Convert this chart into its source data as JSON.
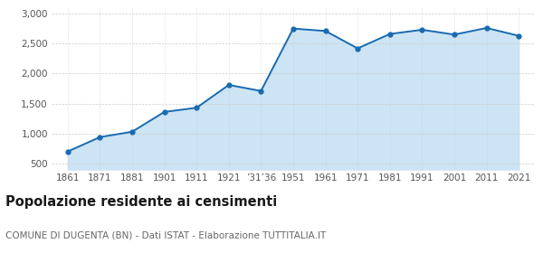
{
  "x_labels": [
    "1861",
    "1871",
    "1881",
    "1901",
    "1911",
    "1921",
    "’31’36",
    "1951",
    "1961",
    "1971",
    "1981",
    "1991",
    "2001",
    "2011",
    "2021"
  ],
  "population": [
    700,
    940,
    1030,
    1360,
    1430,
    1810,
    1710,
    2750,
    2710,
    2420,
    2660,
    2730,
    2650,
    2760,
    2630
  ],
  "line_color": "#1a6ab0",
  "fill_color": "#cce4f4",
  "marker_size": 3.5,
  "ylim": [
    400,
    3100
  ],
  "yticks": [
    500,
    1000,
    1500,
    2000,
    2500,
    3000
  ],
  "ytick_labels": [
    "500",
    "1,000",
    "1,500",
    "2,000",
    "2,500",
    "3,000"
  ],
  "title": "Popolazione residente ai censimenti",
  "subtitle": "COMUNE DI DUGENTA (BN) - Dati ISTAT - Elaborazione TUTTITALIA.IT",
  "title_fontsize": 10.5,
  "subtitle_fontsize": 7.5,
  "grid_color": "#cccccc"
}
